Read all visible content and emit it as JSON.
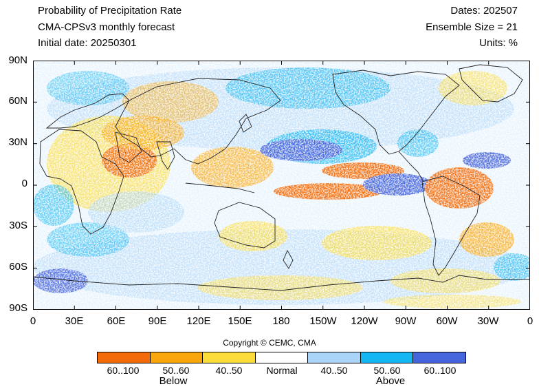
{
  "header": {
    "title": "Probability of Precipitation Rate",
    "model": "CMA-CPSv3 monthly forecast",
    "initial_date": "Initial date: 20250301",
    "dates": "Dates: 202507",
    "ensemble": "Ensemble Size = 21",
    "units": "Units: %"
  },
  "axes": {
    "y_ticks": [
      "90N",
      "60N",
      "30N",
      "0",
      "30S",
      "60S",
      "90S"
    ],
    "x_ticks": [
      "0",
      "30E",
      "60E",
      "90E",
      "120E",
      "150E",
      "180",
      "150W",
      "120W",
      "90W",
      "60W",
      "30W",
      "0"
    ]
  },
  "copyright": "Copyright © CEMC, CMA",
  "legend": {
    "items": [
      {
        "label": "60..100",
        "color": "#f26a0a"
      },
      {
        "label": "50..60",
        "color": "#f9a70c"
      },
      {
        "label": "40..50",
        "color": "#fbdb3a"
      },
      {
        "label": "Normal",
        "color": "#ffffff"
      },
      {
        "label": "40..50",
        "color": "#a9d3f7"
      },
      {
        "label": "50..60",
        "color": "#14b6f2"
      },
      {
        "label": "60..100",
        "color": "#4565dc"
      }
    ],
    "below": "Below",
    "above": "Above"
  },
  "colors": {
    "below_strong": "#f26a0a",
    "below_mid": "#f9a70c",
    "below_weak": "#fbdb3a",
    "above_weak": "#a9d3f7",
    "above_mid": "#14b6f2",
    "above_strong": "#4565dc",
    "coastline": "#222222"
  }
}
